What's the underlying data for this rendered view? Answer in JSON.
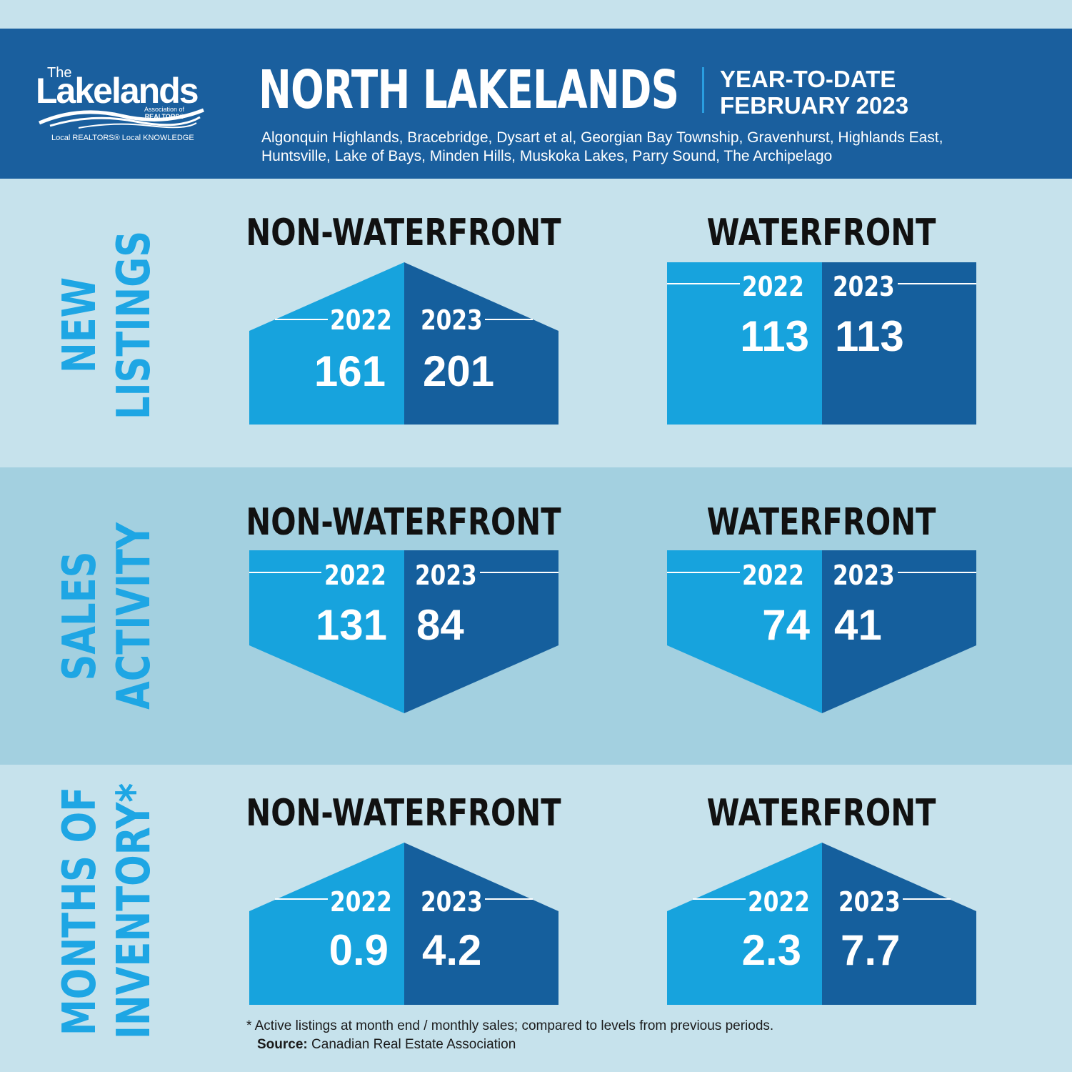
{
  "colors": {
    "background_light": "#c6e2ec",
    "background_mid": "#a3d0e0",
    "header_blue": "#1a5f9e",
    "bright_blue": "#17a3dd",
    "dark_blue": "#155f9d",
    "section_label": "#1ea6e4"
  },
  "logo": {
    "the": "The",
    "name": "Lakelands",
    "association_line1": "Association of",
    "association_line2": "REALTORS®",
    "tagline": "Local REALTORS® Local KNOWLEDGE"
  },
  "header": {
    "title": "NORTH LAKELANDS",
    "period_line1": "YEAR-TO-DATE",
    "period_line2": "FEBRUARY 2023",
    "areas_line1": "Algonquin Highlands, Bracebridge, Dysart et al, Georgian Bay Township, Gravenhurst, Highlands East,",
    "areas_line2": "Huntsville, Lake of Bays, Minden Hills, Muskoka Lakes, Parry Sound, The Archipelago"
  },
  "sections": [
    {
      "label_line1": "NEW",
      "label_line2": "LISTINGS",
      "non_waterfront": {
        "heading": "NON-WATERFRONT",
        "shape": "house",
        "year1": "2022",
        "year2": "2023",
        "value1": "161",
        "value2": "201"
      },
      "waterfront": {
        "heading": "WATERFRONT",
        "shape": "rect",
        "year1": "2022",
        "year2": "2023",
        "value1": "113",
        "value2": "113"
      }
    },
    {
      "label_line1": "SALES",
      "label_line2": "ACTIVITY",
      "non_waterfront": {
        "heading": "NON-WATERFRONT",
        "shape": "down-pointer",
        "year1": "2022",
        "year2": "2023",
        "value1": "131",
        "value2": "84"
      },
      "waterfront": {
        "heading": "WATERFRONT",
        "shape": "down-pointer",
        "year1": "2022",
        "year2": "2023",
        "value1": "74",
        "value2": "41"
      }
    },
    {
      "label_line1": "MONTHS OF",
      "label_line2": "INVENTORY*",
      "non_waterfront": {
        "heading": "NON-WATERFRONT",
        "shape": "house",
        "year1": "2022",
        "year2": "2023",
        "value1": "0.9",
        "value2": "4.2"
      },
      "waterfront": {
        "heading": "WATERFRONT",
        "shape": "house",
        "year1": "2022",
        "year2": "2023",
        "value1": "2.3",
        "value2": "7.7"
      }
    }
  ],
  "footer": {
    "note": "* Active listings at month end / monthly sales; compared to levels from previous periods.",
    "source_label": "Source:",
    "source_value": "Canadian Real Estate Association"
  }
}
